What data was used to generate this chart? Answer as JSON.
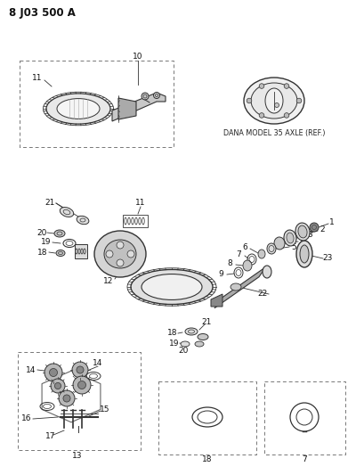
{
  "title": "8 J03 500 A",
  "background_color": "#ffffff",
  "text_color": "#111111",
  "dana_label": "DANA MODEL 35 AXLE (REF.)",
  "figure_width": 4.0,
  "figure_height": 5.33,
  "dpi": 100,
  "gray_fill": "#c8c8c8",
  "gray_dark": "#888888",
  "gray_med": "#aaaaaa",
  "gray_light": "#dddddd",
  "line_color": "#333333"
}
